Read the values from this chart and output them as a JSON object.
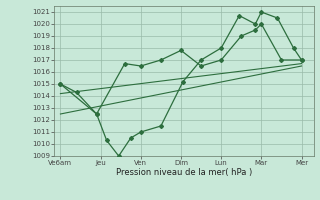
{
  "xlabel": "Pression niveau de la mer( hPa )",
  "xtick_labels": [
    "Ve6am",
    "Jeu",
    "Ven",
    "Dim",
    "Lun",
    "Mar",
    "Mer"
  ],
  "xtick_positions": [
    0,
    1,
    2,
    3,
    4,
    5,
    6
  ],
  "ylim": [
    1009,
    1021.5
  ],
  "ytick_labels": [
    "1009",
    "1010",
    "1011",
    "1012",
    "1013",
    "1014",
    "1015",
    "1016",
    "1017",
    "1018",
    "1019",
    "1020",
    "1021"
  ],
  "ytick_values": [
    1009,
    1010,
    1011,
    1012,
    1013,
    1014,
    1015,
    1016,
    1017,
    1018,
    1019,
    1020,
    1021
  ],
  "bg_color": "#c8e8d8",
  "grid_color": "#99bbaa",
  "line_color": "#2d6e3e",
  "line1_x": [
    0,
    0.4,
    0.9,
    1.15,
    1.45,
    1.75,
    2.0,
    2.5,
    3.05,
    3.5,
    4.0,
    4.45,
    4.85,
    5.0,
    5.4,
    5.8,
    6.0
  ],
  "line1_y": [
    1015.0,
    1014.3,
    1012.5,
    1010.3,
    1009.0,
    1010.5,
    1011.0,
    1011.5,
    1015.2,
    1017.0,
    1018.0,
    1020.7,
    1020.0,
    1021.0,
    1020.5,
    1018.0,
    1017.0
  ],
  "line2_x": [
    0,
    0.9,
    1.6,
    2.0,
    2.5,
    3.0,
    3.5,
    4.0,
    4.5,
    4.85,
    5.0,
    5.5,
    6.0
  ],
  "line2_y": [
    1015.0,
    1012.5,
    1016.7,
    1016.5,
    1017.0,
    1017.8,
    1016.5,
    1017.0,
    1019.0,
    1019.5,
    1020.0,
    1017.0,
    1017.0
  ],
  "line3_x": [
    0,
    6.0
  ],
  "line3_y": [
    1012.5,
    1016.5
  ],
  "line4_x": [
    0,
    6.0
  ],
  "line4_y": [
    1014.2,
    1016.7
  ],
  "marker": "D"
}
